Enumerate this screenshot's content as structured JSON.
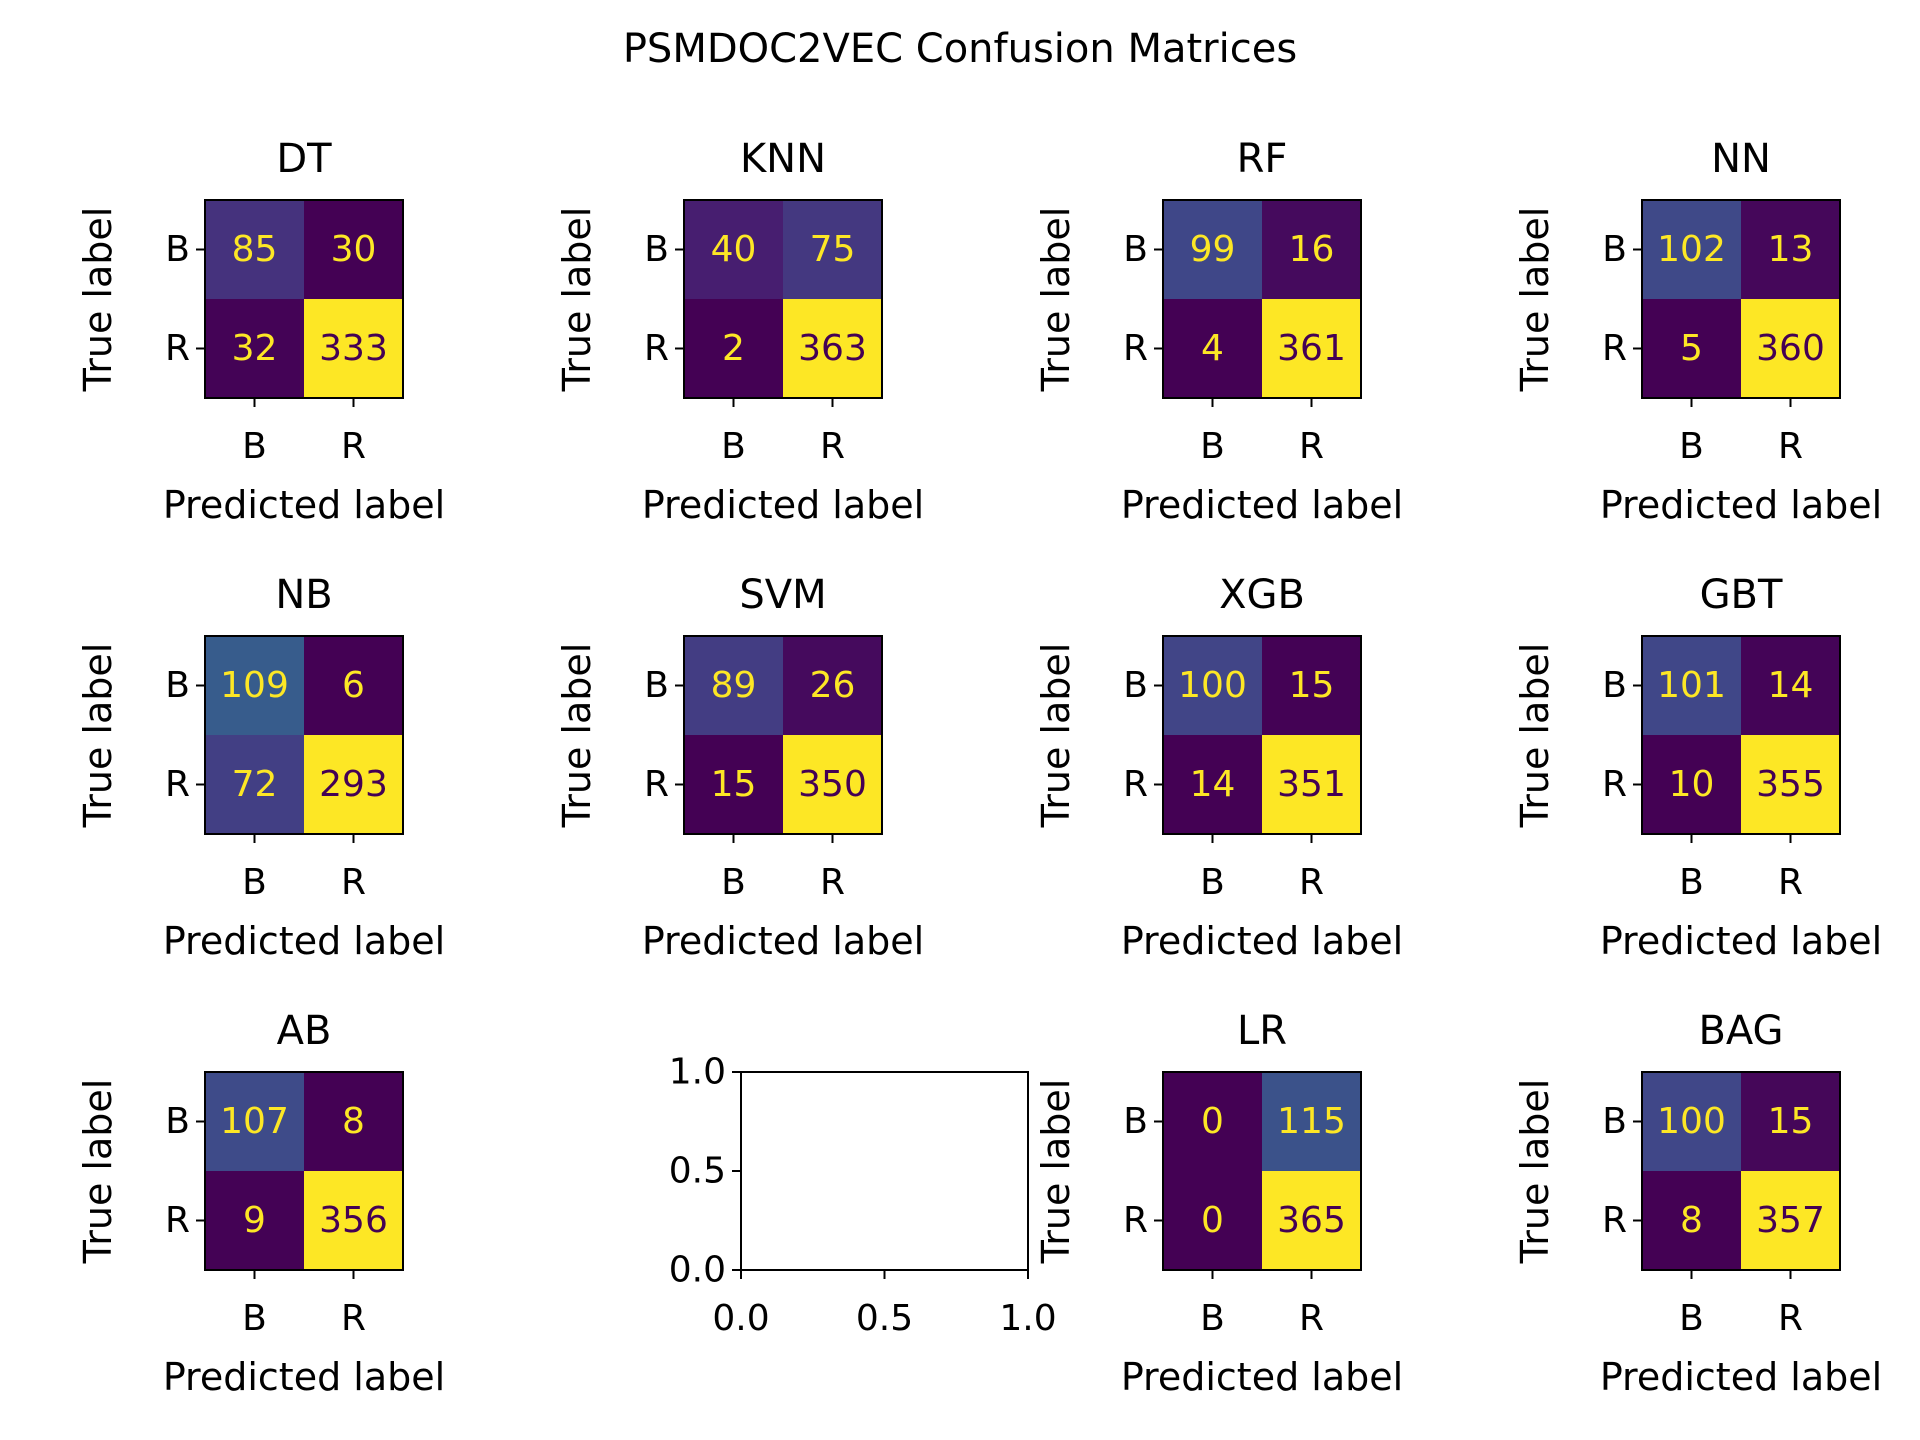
{
  "figure": {
    "title": "PSMDOC2VEC Confusion Matrices",
    "colormap": "viridis",
    "cell_text_light": "#fde725",
    "cell_text_dark": "#440154"
  },
  "chart_data": [
    {
      "type": "heatmap",
      "title": "DT",
      "xlabel": "Predicted label",
      "ylabel": "True label",
      "x_categories": [
        "B",
        "R"
      ],
      "y_categories": [
        "B",
        "R"
      ],
      "values": [
        [
          85,
          30
        ],
        [
          32,
          333
        ]
      ]
    },
    {
      "type": "heatmap",
      "title": "KNN",
      "xlabel": "Predicted label",
      "ylabel": "True label",
      "x_categories": [
        "B",
        "R"
      ],
      "y_categories": [
        "B",
        "R"
      ],
      "values": [
        [
          40,
          75
        ],
        [
          2,
          363
        ]
      ]
    },
    {
      "type": "heatmap",
      "title": "RF",
      "xlabel": "Predicted label",
      "ylabel": "True label",
      "x_categories": [
        "B",
        "R"
      ],
      "y_categories": [
        "B",
        "R"
      ],
      "values": [
        [
          99,
          16
        ],
        [
          4,
          361
        ]
      ]
    },
    {
      "type": "heatmap",
      "title": "NN",
      "xlabel": "Predicted label",
      "ylabel": "True label",
      "x_categories": [
        "B",
        "R"
      ],
      "y_categories": [
        "B",
        "R"
      ],
      "values": [
        [
          102,
          13
        ],
        [
          5,
          360
        ]
      ]
    },
    {
      "type": "heatmap",
      "title": "NB",
      "xlabel": "Predicted label",
      "ylabel": "True label",
      "x_categories": [
        "B",
        "R"
      ],
      "y_categories": [
        "B",
        "R"
      ],
      "values": [
        [
          109,
          6
        ],
        [
          72,
          293
        ]
      ]
    },
    {
      "type": "heatmap",
      "title": "SVM",
      "xlabel": "Predicted label",
      "ylabel": "True label",
      "x_categories": [
        "B",
        "R"
      ],
      "y_categories": [
        "B",
        "R"
      ],
      "values": [
        [
          89,
          26
        ],
        [
          15,
          350
        ]
      ]
    },
    {
      "type": "heatmap",
      "title": "XGB",
      "xlabel": "Predicted label",
      "ylabel": "True label",
      "x_categories": [
        "B",
        "R"
      ],
      "y_categories": [
        "B",
        "R"
      ],
      "values": [
        [
          100,
          15
        ],
        [
          14,
          351
        ]
      ]
    },
    {
      "type": "heatmap",
      "title": "GBT",
      "xlabel": "Predicted label",
      "ylabel": "True label",
      "x_categories": [
        "B",
        "R"
      ],
      "y_categories": [
        "B",
        "R"
      ],
      "values": [
        [
          101,
          14
        ],
        [
          10,
          355
        ]
      ]
    },
    {
      "type": "heatmap",
      "title": "AB",
      "xlabel": "Predicted label",
      "ylabel": "True label",
      "x_categories": [
        "B",
        "R"
      ],
      "y_categories": [
        "B",
        "R"
      ],
      "values": [
        [
          107,
          8
        ],
        [
          9,
          356
        ]
      ]
    },
    {
      "type": "empty",
      "xlim": [
        0,
        1
      ],
      "ylim": [
        0,
        1
      ],
      "xticks": [
        "0.0",
        "0.5",
        "1.0"
      ],
      "yticks": [
        "0.0",
        "0.5",
        "1.0"
      ]
    },
    {
      "type": "heatmap",
      "title": "LR",
      "xlabel": "Predicted label",
      "ylabel": "True label",
      "x_categories": [
        "B",
        "R"
      ],
      "y_categories": [
        "B",
        "R"
      ],
      "values": [
        [
          0,
          115
        ],
        [
          0,
          365
        ]
      ]
    },
    {
      "type": "heatmap",
      "title": "BAG",
      "xlabel": "Predicted label",
      "ylabel": "True label",
      "x_categories": [
        "B",
        "R"
      ],
      "y_categories": [
        "B",
        "R"
      ],
      "values": [
        [
          100,
          15
        ],
        [
          8,
          357
        ]
      ]
    }
  ]
}
